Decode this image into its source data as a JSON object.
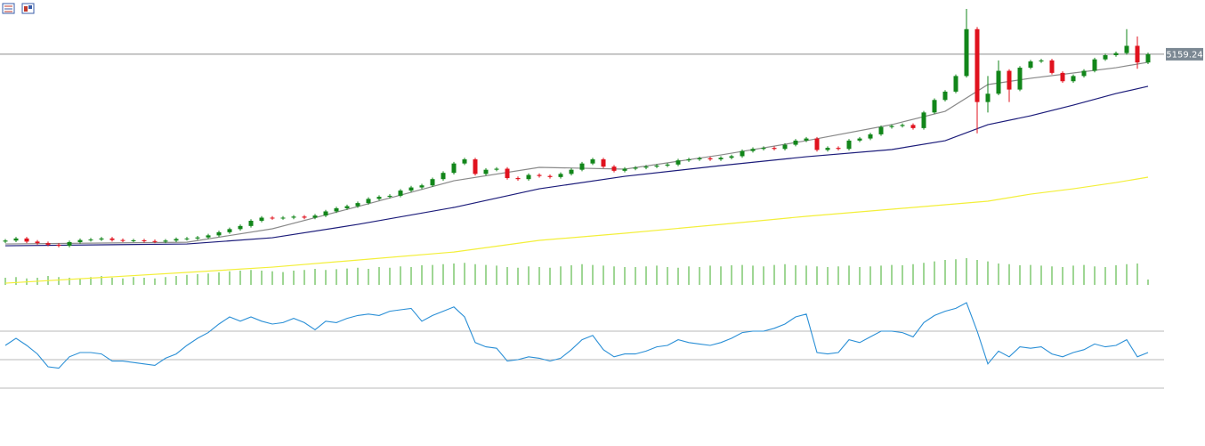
{
  "chart_data": {
    "type": "candlestick",
    "bull_color": "#12861a",
    "bear_color": "#e0121e",
    "ylim": [
      2859,
      5680
    ],
    "open": [
      3360,
      3370,
      3390,
      3360,
      3345,
      3330,
      3320,
      3355,
      3375,
      3380,
      3390,
      3375,
      3370,
      3372,
      3365,
      3360,
      3370,
      3385,
      3390,
      3400,
      3420,
      3450,
      3480,
      3510,
      3560,
      3590,
      3585,
      3590,
      3600,
      3590,
      3610,
      3650,
      3680,
      3700,
      3730,
      3770,
      3790,
      3800,
      3850,
      3880,
      3900,
      3960,
      4020,
      4110,
      4150,
      4010,
      4050,
      4060,
      3970,
      3960,
      4000,
      3990,
      3980,
      4010,
      4050,
      4110,
      4150,
      4080,
      4040,
      4060,
      4070,
      4080,
      4090,
      4100,
      4140,
      4150,
      4160,
      4150,
      4165,
      4180,
      4230,
      4250,
      4260,
      4250,
      4290,
      4330,
      4350,
      4240,
      4260,
      4250,
      4330,
      4350,
      4390,
      4460,
      4470,
      4480,
      4450,
      4600,
      4720,
      4800,
      4950,
      5400,
      4700,
      4780,
      5000,
      4820,
      5030,
      5090,
      5100,
      4980,
      4900,
      4950,
      5000,
      5110,
      5150,
      5170,
      5240,
      5080
    ],
    "high": [
      3385,
      3405,
      3405,
      3375,
      3360,
      3345,
      3370,
      3390,
      3395,
      3405,
      3405,
      3390,
      3387,
      3387,
      3380,
      3385,
      3400,
      3405,
      3415,
      3435,
      3465,
      3495,
      3525,
      3575,
      3605,
      3605,
      3605,
      3615,
      3615,
      3625,
      3665,
      3695,
      3715,
      3745,
      3785,
      3805,
      3815,
      3865,
      3895,
      3915,
      3975,
      4035,
      4125,
      4165,
      4165,
      4065,
      4075,
      4075,
      3985,
      4015,
      4015,
      4005,
      4025,
      4065,
      4125,
      4165,
      4165,
      4095,
      4075,
      4085,
      4095,
      4105,
      4115,
      4155,
      4165,
      4175,
      4175,
      4180,
      4195,
      4245,
      4265,
      4275,
      4275,
      4305,
      4345,
      4365,
      4365,
      4275,
      4275,
      4345,
      4365,
      4405,
      4475,
      4485,
      4495,
      4495,
      4615,
      4735,
      4815,
      4965,
      5594,
      5420,
      4950,
      5100,
      5015,
      5045,
      5105,
      5115,
      5115,
      4995,
      4965,
      5015,
      5125,
      5165,
      5185,
      5400,
      5330,
      5175
    ],
    "low": [
      3345,
      3355,
      3345,
      3330,
      3315,
      3305,
      3305,
      3340,
      3360,
      3365,
      3360,
      3355,
      3355,
      3350,
      3345,
      3345,
      3355,
      3370,
      3375,
      3385,
      3405,
      3435,
      3465,
      3495,
      3545,
      3570,
      3570,
      3575,
      3575,
      3575,
      3595,
      3635,
      3665,
      3685,
      3715,
      3755,
      3775,
      3785,
      3835,
      3865,
      3885,
      3945,
      4005,
      4095,
      3995,
      3995,
      4035,
      3955,
      3945,
      3945,
      3975,
      3965,
      3965,
      3995,
      4035,
      4095,
      4065,
      4025,
      4025,
      4045,
      4055,
      4065,
      4075,
      4085,
      4125,
      4135,
      4135,
      4135,
      4150,
      4165,
      4215,
      4235,
      4235,
      4235,
      4275,
      4315,
      4225,
      4225,
      4235,
      4235,
      4315,
      4335,
      4375,
      4445,
      4455,
      4435,
      4435,
      4585,
      4705,
      4785,
      4935,
      4400,
      4600,
      4765,
      4700,
      4805,
      5015,
      5075,
      4965,
      4885,
      4885,
      4935,
      4985,
      5095,
      5135,
      5155,
      5020,
      5065
    ],
    "close": [
      3370,
      3390,
      3360,
      3345,
      3330,
      3320,
      3355,
      3375,
      3380,
      3390,
      3375,
      3370,
      3372,
      3365,
      3360,
      3370,
      3385,
      3390,
      3400,
      3420,
      3450,
      3480,
      3510,
      3560,
      3590,
      3585,
      3590,
      3600,
      3590,
      3610,
      3650,
      3680,
      3700,
      3730,
      3770,
      3790,
      3800,
      3850,
      3880,
      3900,
      3960,
      4020,
      4110,
      4150,
      4010,
      4050,
      4060,
      3970,
      3960,
      4000,
      3990,
      3980,
      4010,
      4050,
      4110,
      4150,
      4080,
      4040,
      4060,
      4070,
      4080,
      4090,
      4100,
      4140,
      4150,
      4160,
      4150,
      4165,
      4180,
      4230,
      4250,
      4260,
      4250,
      4290,
      4330,
      4350,
      4240,
      4260,
      4250,
      4330,
      4350,
      4390,
      4460,
      4470,
      4480,
      4450,
      4600,
      4720,
      4800,
      4950,
      5400,
      4700,
      4780,
      5000,
      4820,
      5030,
      5090,
      5100,
      4980,
      4900,
      4950,
      5000,
      5110,
      5150,
      5170,
      5240,
      5080,
      5159.24
    ],
    "moving_averages": [
      {
        "color": "#8a8a8a",
        "x": [
          0,
          17,
          25,
          33,
          42,
          50,
          58,
          67,
          75,
          83,
          88,
          92,
          96,
          100,
          104,
          107
        ],
        "values": [
          3337,
          3354,
          3483,
          3696,
          3944,
          4073,
          4056,
          4192,
          4329,
          4483,
          4611,
          4868,
          4928,
          4979,
          5030,
          5082
        ]
      },
      {
        "color": "#1c1c7a",
        "x": [
          0,
          17,
          25,
          33,
          42,
          50,
          58,
          67,
          75,
          83,
          88,
          92,
          96,
          100,
          104,
          107
        ],
        "values": [
          3320,
          3337,
          3397,
          3525,
          3688,
          3867,
          3987,
          4090,
          4175,
          4244,
          4329,
          4483,
          4568,
          4671,
          4782,
          4851
        ]
      },
      {
        "color": "#f3ef3a",
        "x": [
          0,
          17,
          25,
          33,
          42,
          50,
          58,
          67,
          75,
          83,
          88,
          92,
          96,
          100,
          104,
          107
        ],
        "values": [
          2961,
          3064,
          3115,
          3183,
          3260,
          3372,
          3440,
          3525,
          3603,
          3671,
          3714,
          3748,
          3816,
          3867,
          3927,
          3979
        ]
      }
    ],
    "volume": {
      "color": "#3fae2a",
      "ylim": [
        0,
        100
      ],
      "values": [
        20,
        22,
        18,
        20,
        25,
        22,
        20,
        18,
        22,
        25,
        20,
        18,
        22,
        20,
        18,
        22,
        25,
        28,
        30,
        32,
        35,
        38,
        40,
        42,
        40,
        38,
        36,
        40,
        42,
        45,
        42,
        44,
        46,
        48,
        45,
        50,
        48,
        52,
        50,
        55,
        56,
        58,
        60,
        62,
        58,
        56,
        54,
        50,
        48,
        52,
        50,
        48,
        52,
        55,
        58,
        56,
        54,
        52,
        50,
        50,
        52,
        54,
        50,
        48,
        52,
        50,
        54,
        52,
        55,
        56,
        54,
        52,
        56,
        58,
        55,
        54,
        52,
        50,
        52,
        54,
        50,
        52,
        54,
        56,
        55,
        58,
        62,
        66,
        70,
        72,
        75,
        70,
        66,
        60,
        58,
        55,
        56,
        54,
        52,
        50,
        54,
        56,
        52,
        50,
        55,
        58,
        60,
        15
      ]
    },
    "rsi": {
      "color": "#2a8fd6",
      "ylim": [
        0,
        100
      ],
      "levels": [
        30,
        50,
        70
      ],
      "values": [
        60,
        65,
        60,
        54,
        45,
        44,
        52,
        55,
        55,
        54,
        49,
        49,
        48,
        47,
        46,
        51,
        54,
        60,
        65,
        69,
        75,
        80,
        77,
        80,
        77,
        75,
        76,
        79,
        76,
        71,
        77,
        76,
        79,
        81,
        82,
        81,
        84,
        85,
        86,
        77,
        81,
        84,
        87,
        80,
        62,
        59,
        58,
        49,
        50,
        52,
        51,
        49,
        51,
        57,
        64,
        67,
        57,
        52,
        54,
        54,
        56,
        59,
        60,
        64,
        62,
        61,
        60,
        62,
        65,
        69,
        70,
        70,
        72,
        75,
        80,
        82,
        55,
        54,
        55,
        64,
        62,
        66,
        70,
        70,
        69,
        66,
        76,
        81,
        84,
        86,
        90,
        70,
        47,
        56,
        52,
        59,
        58,
        59,
        54,
        52,
        55,
        57,
        61,
        59,
        60,
        64,
        52,
        55
      ]
    },
    "last_price": 5159.24
  }
}
